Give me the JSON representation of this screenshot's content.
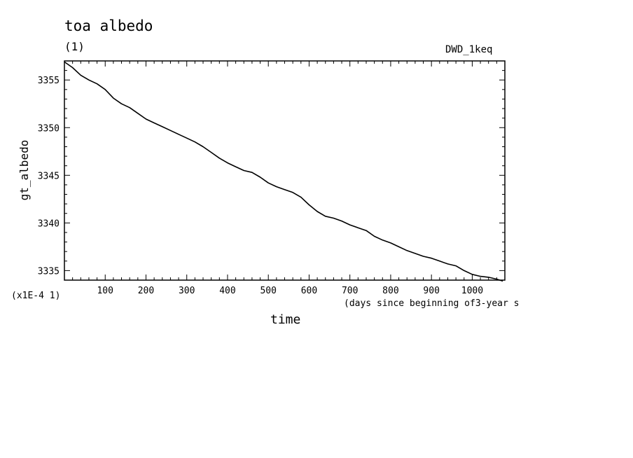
{
  "chart_data": {
    "type": "line",
    "title": "toa albedo",
    "subtitle": "(1)",
    "run_label": "DWD_1keq",
    "xlabel": "time",
    "x_units": "(days since beginning of3-year s",
    "ylabel": "gt_albedo",
    "y_scale_note": "(x1E-4 1)",
    "xlim": [
      0,
      1080
    ],
    "ylim": [
      3334,
      3357
    ],
    "xticks": [
      100,
      200,
      300,
      400,
      500,
      600,
      700,
      800,
      900,
      1000
    ],
    "yticks": [
      3335,
      3340,
      3345,
      3350,
      3355
    ],
    "grid": false,
    "series": [
      {
        "x": [
          0,
          20,
          40,
          60,
          80,
          100,
          120,
          140,
          160,
          180,
          200,
          220,
          240,
          260,
          280,
          300,
          320,
          340,
          360,
          380,
          400,
          420,
          440,
          460,
          480,
          500,
          520,
          540,
          560,
          580,
          600,
          620,
          640,
          660,
          680,
          700,
          720,
          740,
          760,
          780,
          800,
          820,
          840,
          860,
          880,
          900,
          920,
          940,
          960,
          980,
          1000,
          1020,
          1040,
          1060,
          1075
        ],
        "y": [
          3356.9,
          3356.3,
          3355.5,
          3355.0,
          3354.6,
          3354.0,
          3353.1,
          3352.5,
          3352.1,
          3351.5,
          3350.9,
          3350.5,
          3350.1,
          3349.7,
          3349.3,
          3348.9,
          3348.5,
          3348.0,
          3347.4,
          3346.8,
          3346.3,
          3345.9,
          3345.5,
          3345.3,
          3344.8,
          3344.2,
          3343.8,
          3343.5,
          3343.2,
          3342.7,
          3341.9,
          3341.2,
          3340.7,
          3340.5,
          3340.2,
          3339.8,
          3339.5,
          3339.2,
          3338.6,
          3338.2,
          3337.9,
          3337.5,
          3337.1,
          3336.8,
          3336.5,
          3336.3,
          3336.0,
          3335.7,
          3335.5,
          3335.0,
          3334.6,
          3334.4,
          3334.3,
          3334.1,
          3333.9
        ]
      }
    ]
  }
}
